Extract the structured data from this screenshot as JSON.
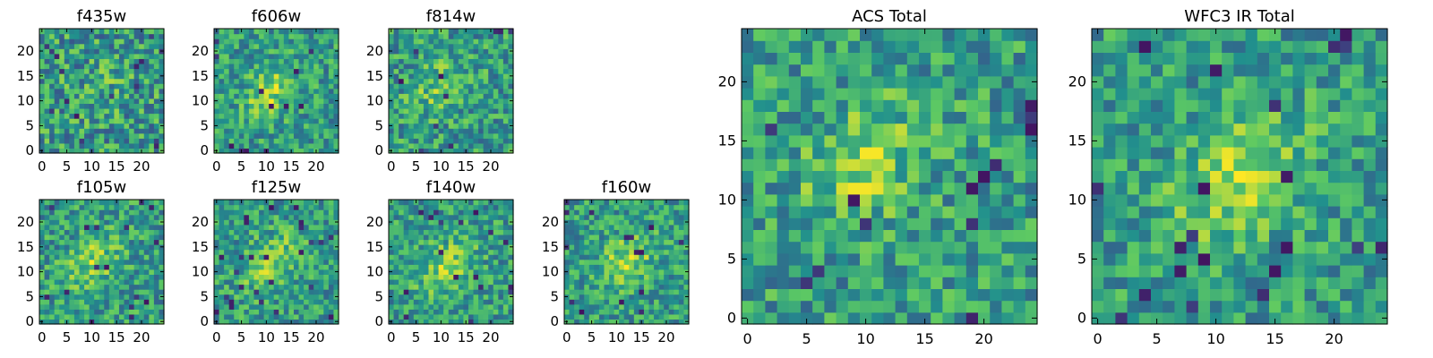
{
  "palette": [
    "#440154",
    "#3b528b",
    "#21908d",
    "#5dc963",
    "#fde725"
  ],
  "chart_data": [
    {
      "type": "heatmap",
      "id": "f435w",
      "title": "f435w",
      "grid_size": 25,
      "xticks": [
        "0",
        "5",
        "10",
        "15",
        "20"
      ],
      "yticks": [
        "0",
        "5",
        "10",
        "15",
        "20"
      ],
      "xlim": [
        0,
        24
      ],
      "ylim": [
        0,
        24
      ],
      "colormap": "viridis",
      "source_centre": [
        12,
        12
      ],
      "signal_strength": 0.15
    },
    {
      "type": "heatmap",
      "id": "f606w",
      "title": "f606w",
      "grid_size": 25,
      "xticks": [
        "0",
        "5",
        "10",
        "15",
        "20"
      ],
      "yticks": [
        "0",
        "5",
        "10",
        "15",
        "20"
      ],
      "xlim": [
        0,
        24
      ],
      "ylim": [
        0,
        24
      ],
      "colormap": "viridis",
      "source_centre": [
        11,
        12
      ],
      "signal_strength": 0.6
    },
    {
      "type": "heatmap",
      "id": "f814w",
      "title": "f814w",
      "grid_size": 25,
      "xticks": [
        "0",
        "5",
        "10",
        "15",
        "20"
      ],
      "yticks": [
        "0",
        "5",
        "10",
        "15",
        "20"
      ],
      "xlim": [
        0,
        24
      ],
      "ylim": [
        0,
        24
      ],
      "colormap": "viridis",
      "source_centre": [
        10,
        13
      ],
      "signal_strength": 0.45
    },
    {
      "type": "heatmap",
      "id": "f105w",
      "title": "f105w",
      "grid_size": 25,
      "xticks": [
        "0",
        "5",
        "10",
        "15",
        "20"
      ],
      "yticks": [
        "0",
        "5",
        "10",
        "15",
        "20"
      ],
      "xlim": [
        0,
        24
      ],
      "ylim": [
        0,
        24
      ],
      "colormap": "viridis",
      "source_centre": [
        10,
        12
      ],
      "signal_strength": 0.55
    },
    {
      "type": "heatmap",
      "id": "f125w",
      "title": "f125w",
      "grid_size": 25,
      "xticks": [
        "0",
        "5",
        "10",
        "15",
        "20"
      ],
      "yticks": [
        "0",
        "5",
        "10",
        "15",
        "20"
      ],
      "xlim": [
        0,
        24
      ],
      "ylim": [
        0,
        24
      ],
      "colormap": "viridis",
      "source_centre": [
        11,
        12
      ],
      "signal_strength": 0.6
    },
    {
      "type": "heatmap",
      "id": "f140w",
      "title": "f140w",
      "grid_size": 25,
      "xticks": [
        "0",
        "5",
        "10",
        "15",
        "20"
      ],
      "yticks": [
        "0",
        "5",
        "10",
        "15",
        "20"
      ],
      "xlim": [
        0,
        24
      ],
      "ylim": [
        0,
        24
      ],
      "colormap": "viridis",
      "source_centre": [
        11,
        11
      ],
      "signal_strength": 0.6
    },
    {
      "type": "heatmap",
      "id": "f160w",
      "title": "f160w",
      "grid_size": 25,
      "xticks": [
        "0",
        "5",
        "10",
        "15",
        "20"
      ],
      "yticks": [
        "0",
        "5",
        "10",
        "15",
        "20"
      ],
      "xlim": [
        0,
        24
      ],
      "ylim": [
        0,
        24
      ],
      "colormap": "viridis",
      "source_centre": [
        12,
        12
      ],
      "signal_strength": 0.65
    },
    {
      "type": "heatmap",
      "id": "acs",
      "title": "ACS Total",
      "grid_size": 25,
      "xticks": [
        "0",
        "5",
        "10",
        "15",
        "20"
      ],
      "yticks": [
        "0",
        "5",
        "10",
        "15",
        "20"
      ],
      "xlim": [
        0,
        24
      ],
      "ylim": [
        0,
        24
      ],
      "colormap": "viridis",
      "source_centre": [
        10,
        13
      ],
      "signal_strength": 0.55
    },
    {
      "type": "heatmap",
      "id": "wfc3",
      "title": "WFC3 IR Total",
      "grid_size": 25,
      "xticks": [
        "0",
        "5",
        "10",
        "15",
        "20"
      ],
      "yticks": [
        "0",
        "5",
        "10",
        "15",
        "20"
      ],
      "xlim": [
        0,
        24
      ],
      "ylim": [
        0,
        24
      ],
      "colormap": "viridis",
      "source_centre": [
        12,
        12
      ],
      "signal_strength": 0.7
    }
  ]
}
